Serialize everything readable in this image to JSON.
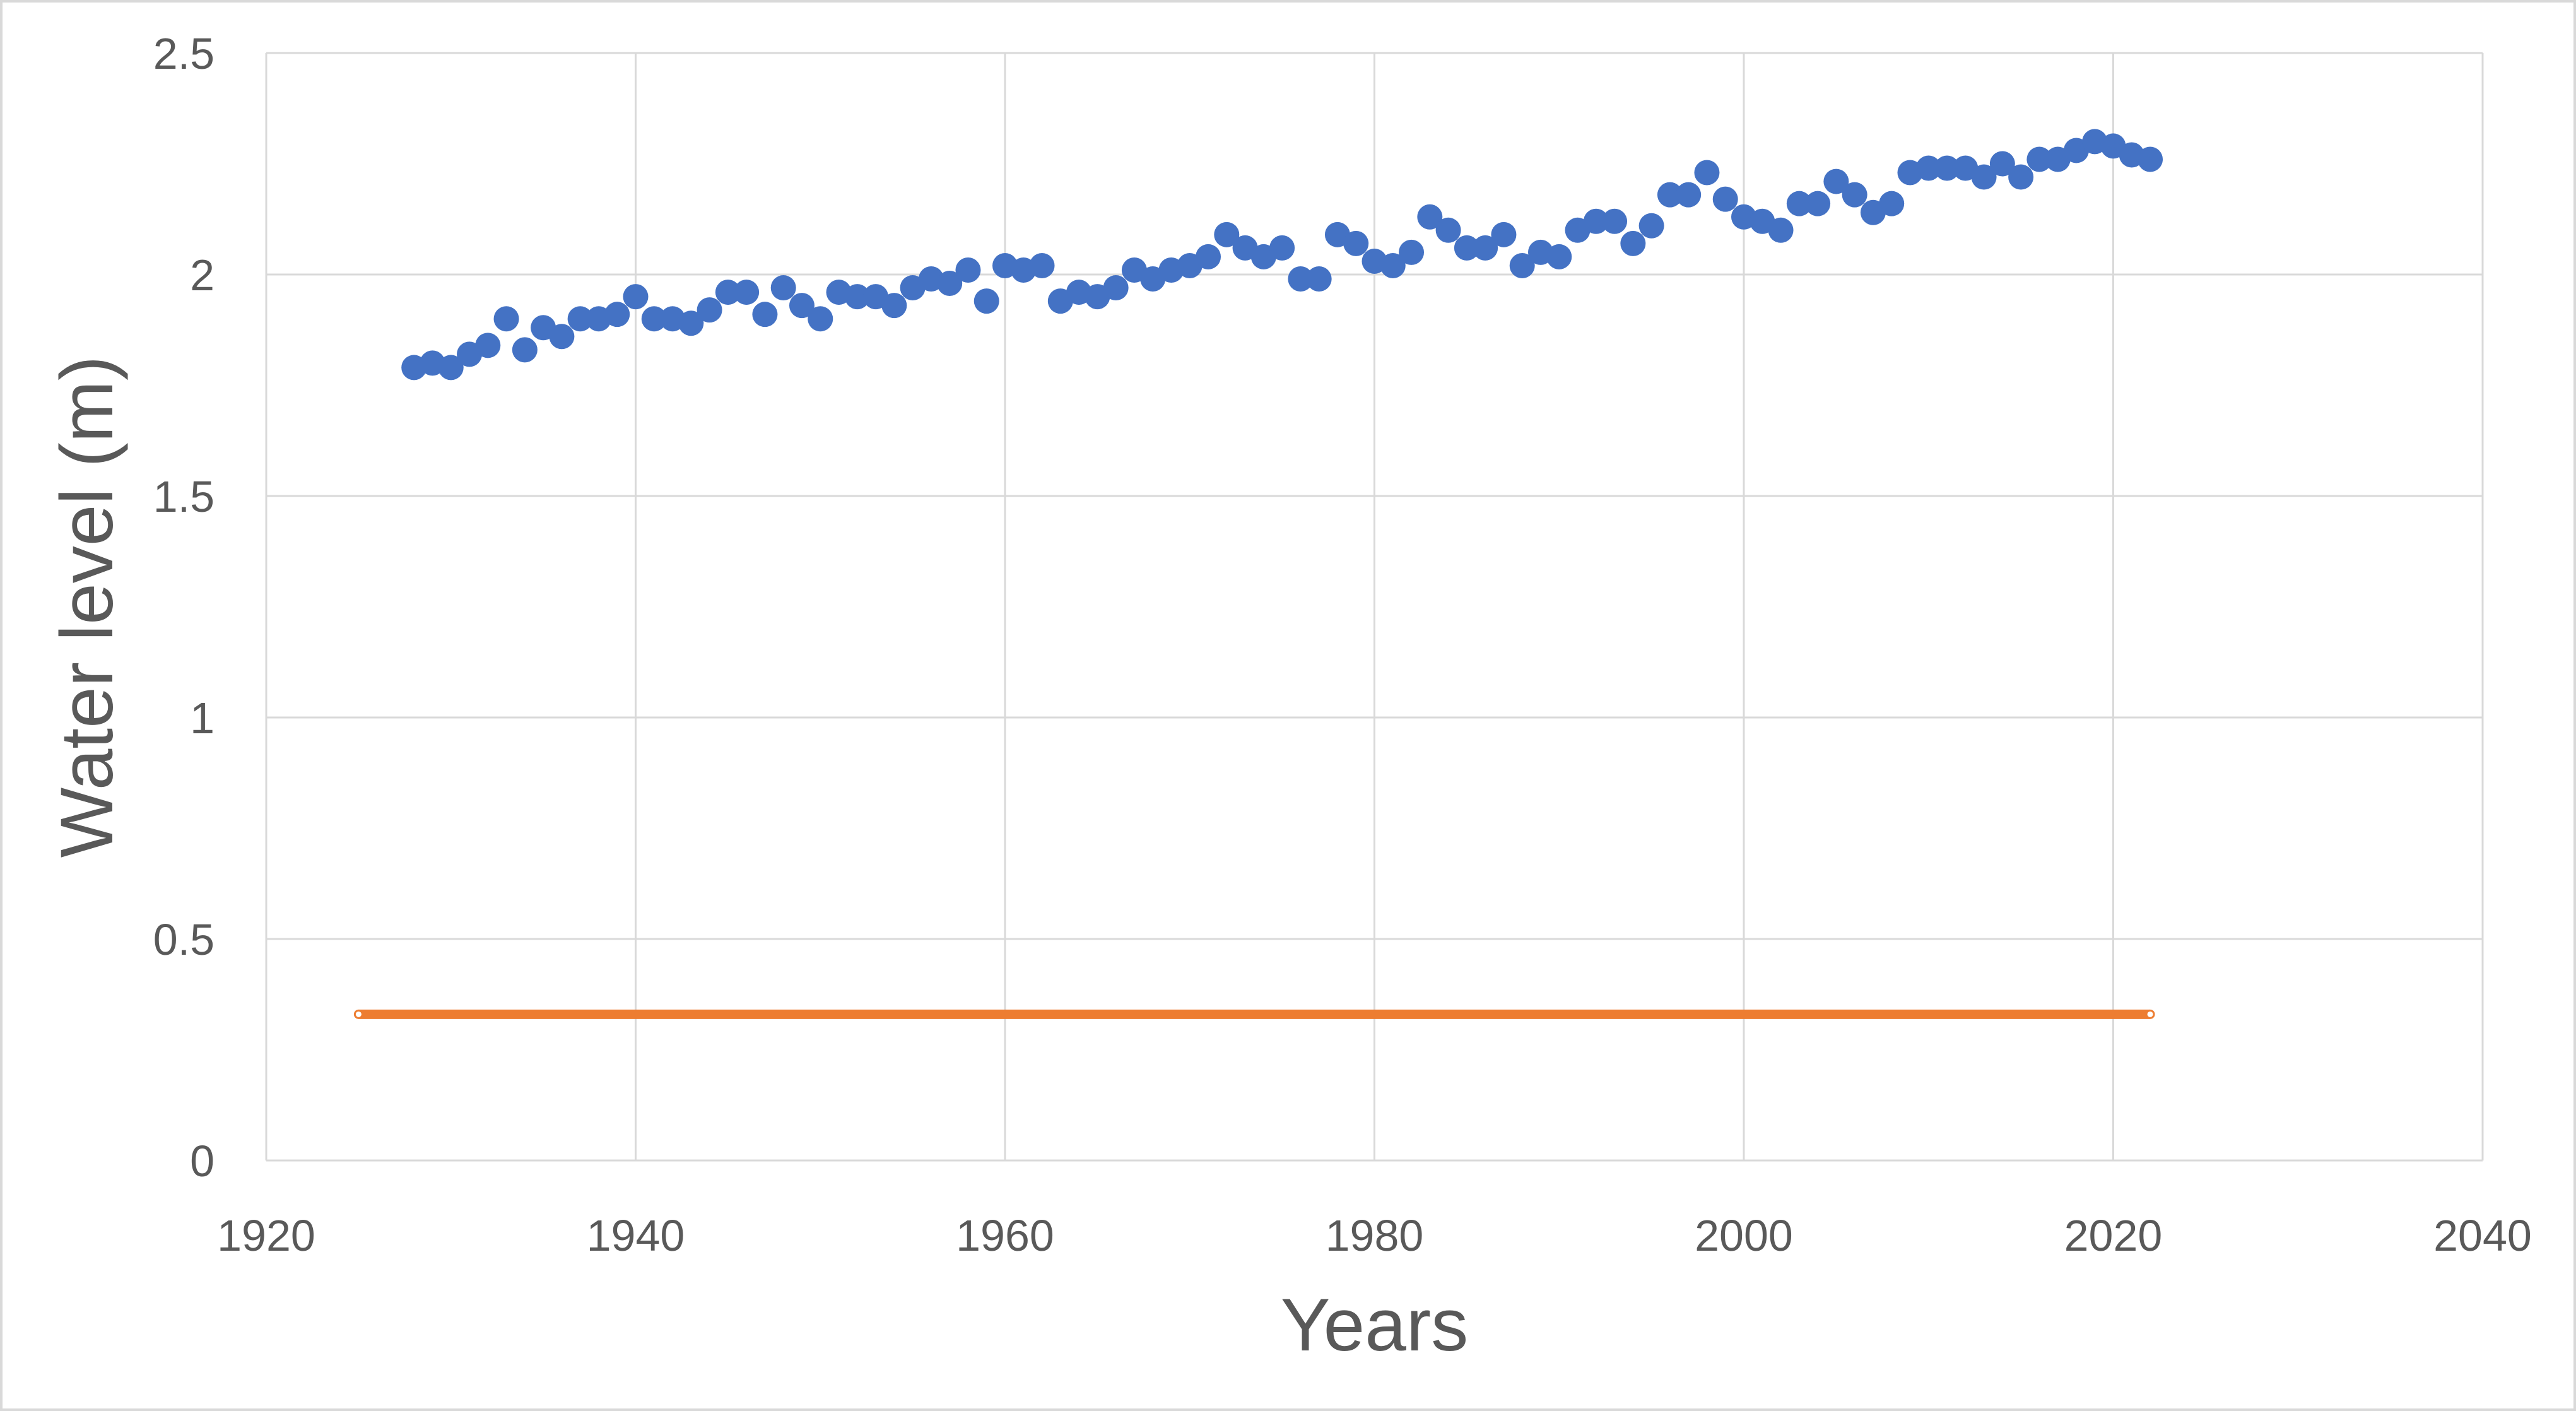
{
  "chart_data": {
    "type": "scatter",
    "title": "",
    "xlabel": "Years",
    "ylabel": "Water level (m)",
    "xlim": [
      1920,
      2040
    ],
    "ylim": [
      0,
      2.5
    ],
    "xticks": [
      1920,
      1940,
      1960,
      1980,
      2000,
      2020,
      2040
    ],
    "yticks": [
      0,
      0.5,
      1,
      1.5,
      2,
      2.5
    ],
    "x_tick_labels": [
      "1920",
      "1940",
      "1960",
      "1980",
      "2000",
      "2020",
      "2040"
    ],
    "y_tick_labels": [
      "0",
      "0.5",
      "1",
      "1.5",
      "2",
      "2.5"
    ],
    "grid": true,
    "legend": "none",
    "series": [
      {
        "type": "scatter",
        "color": "#4472C4",
        "x": [
          1928,
          1929,
          1930,
          1931,
          1932,
          1933,
          1934,
          1935,
          1936,
          1937,
          1938,
          1939,
          1940,
          1941,
          1942,
          1943,
          1944,
          1945,
          1946,
          1947,
          1948,
          1949,
          1950,
          1951,
          1952,
          1953,
          1954,
          1955,
          1956,
          1957,
          1958,
          1959,
          1960,
          1961,
          1962,
          1963,
          1964,
          1965,
          1966,
          1967,
          1968,
          1969,
          1970,
          1971,
          1972,
          1973,
          1974,
          1975,
          1976,
          1977,
          1978,
          1979,
          1980,
          1981,
          1982,
          1983,
          1984,
          1985,
          1986,
          1987,
          1988,
          1989,
          1990,
          1991,
          1992,
          1993,
          1994,
          1995,
          1996,
          1997,
          1998,
          1999,
          2000,
          2001,
          2002,
          2003,
          2004,
          2005,
          2006,
          2007,
          2008,
          2009,
          2010,
          2011,
          2012,
          2013,
          2014,
          2015,
          2016,
          2017,
          2018,
          2019,
          2020,
          2021,
          2022
        ],
        "y": [
          1.79,
          1.8,
          1.79,
          1.82,
          1.84,
          1.9,
          1.83,
          1.88,
          1.86,
          1.9,
          1.9,
          1.91,
          1.95,
          1.9,
          1.9,
          1.89,
          1.92,
          1.96,
          1.96,
          1.91,
          1.97,
          1.93,
          1.9,
          1.96,
          1.95,
          1.95,
          1.93,
          1.97,
          1.99,
          1.98,
          2.01,
          1.94,
          2.02,
          2.01,
          2.02,
          1.94,
          1.96,
          1.95,
          1.97,
          2.01,
          1.99,
          2.01,
          2.02,
          2.04,
          2.09,
          2.06,
          2.04,
          2.06,
          1.99,
          1.99,
          2.09,
          2.07,
          2.03,
          2.02,
          2.05,
          2.13,
          2.1,
          2.06,
          2.06,
          2.09,
          2.02,
          2.05,
          2.04,
          2.1,
          2.12,
          2.12,
          2.07,
          2.11,
          2.18,
          2.18,
          2.23,
          2.17,
          2.13,
          2.12,
          2.1,
          2.16,
          2.16,
          2.21,
          2.18,
          2.14,
          2.16,
          2.23,
          2.24,
          2.24,
          2.24,
          2.22,
          2.25,
          2.22,
          2.26,
          2.26,
          2.28,
          2.3,
          2.29,
          2.27,
          2.26
        ]
      },
      {
        "type": "line",
        "color": "#ED7D31",
        "x": [
          1925,
          2022
        ],
        "y": [
          0.33,
          0.33
        ]
      }
    ]
  }
}
